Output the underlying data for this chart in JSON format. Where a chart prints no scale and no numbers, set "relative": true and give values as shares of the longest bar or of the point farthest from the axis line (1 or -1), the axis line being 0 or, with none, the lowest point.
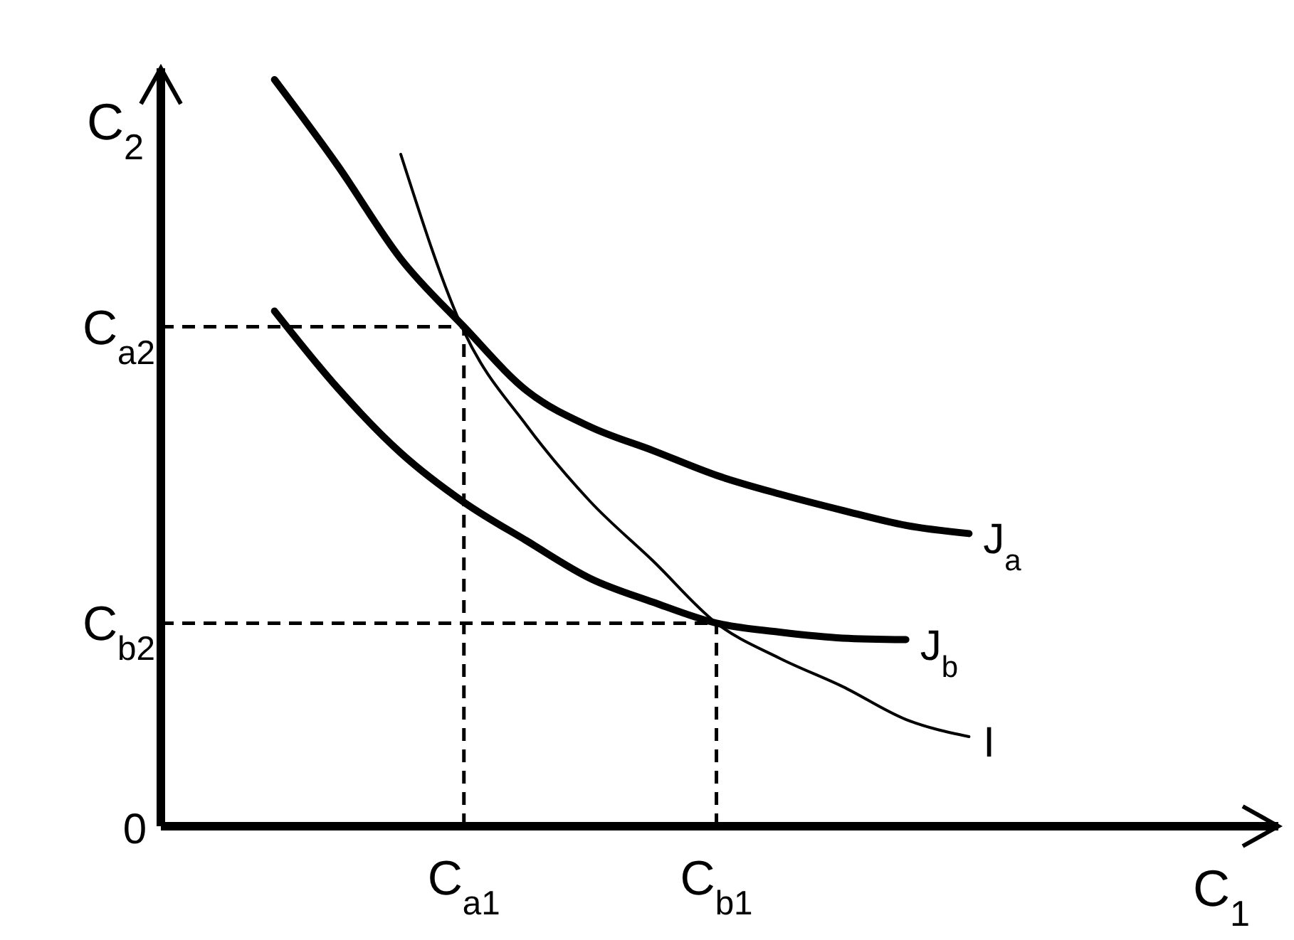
{
  "chart_data": {
    "type": "line",
    "relative": true,
    "xlabel": "C$_{1}$",
    "ylabel": "C$_{2}$",
    "marker": "none",
    "line_style": "solid",
    "categories": [
      null,
      null,
      null,
      null,
      "C$_{a1}$",
      null,
      null,
      null,
      "C$_{b1}$",
      null,
      null,
      null,
      null,
      null
    ],
    "series": [
      {
        "name": "J$_{a}$",
        "color": "#000000",
        "values": [
          null,
          1.0,
          0.885,
          0.76,
          0.669,
          0.583,
          0.535,
          0.503,
          0.47,
          0.445,
          0.423,
          0.403,
          0.392,
          null
        ]
      },
      {
        "name": "J$_{b}$",
        "color": "#000000",
        "values": [
          null,
          0.69,
          0.587,
          0.5,
          0.434,
          0.382,
          0.332,
          0.3,
          0.272,
          0.26,
          0.252,
          0.25,
          null,
          null
        ]
      },
      {
        "name": "I",
        "color": "#000000",
        "values": [
          null,
          null,
          null,
          0.9,
          0.663,
          0.536,
          0.435,
          0.355,
          0.272,
          0.225,
          0.187,
          0.143,
          0.12,
          null
        ]
      }
    ],
    "ref_lines": [
      {
        "axis": "x",
        "value": "C$_{a1}$",
        "line_style": "dashed"
      },
      {
        "axis": "x",
        "value": "C$_{b1}$",
        "line_style": "dashed"
      },
      {
        "axis": "y",
        "value": 0.669,
        "label": "C$_{a2}$",
        "line_style": "dashed"
      },
      {
        "axis": "y",
        "value": 0.272,
        "label": "C$_{b2}$",
        "line_style": "dashed"
      }
    ],
    "annotations": [
      "0"
    ]
  }
}
